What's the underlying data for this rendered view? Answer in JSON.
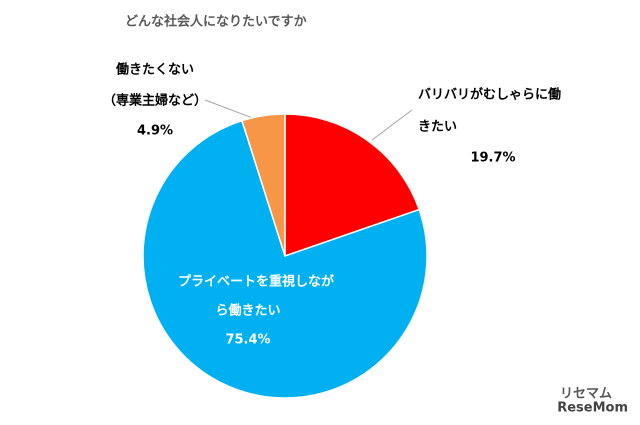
{
  "chart_data": {
    "type": "pie",
    "title": "どんな社会人になりたいですか",
    "categories": [
      [
        "バリバリがむしゃらに働",
        "きたい"
      ],
      [
        "プライベートを重視しなが",
        "ら働きたい"
      ],
      [
        "働きたくない",
        "（専業主婦など）"
      ]
    ],
    "values": [
      19.7,
      75.4,
      4.9
    ],
    "value_labels": [
      "19.7%",
      "75.4%",
      "4.9%"
    ],
    "colors": [
      "#ff0000",
      "#00b0f0",
      "#f79646"
    ]
  },
  "watermark": "ReseMom",
  "watermark_sub": "リセマム"
}
